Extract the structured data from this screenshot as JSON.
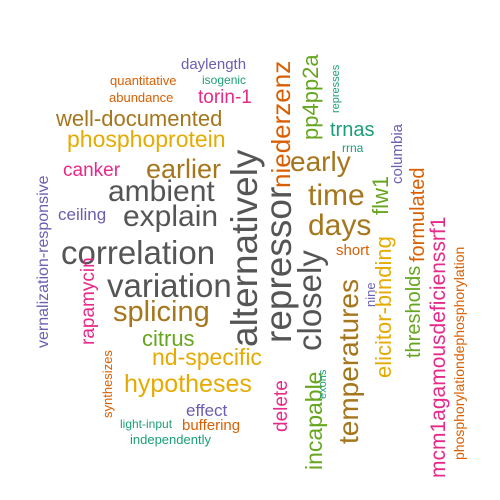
{
  "words": [
    {
      "text": "daylength",
      "color": "#6a5fb0"
    },
    {
      "text": "quantitative",
      "color": "#d95f02"
    },
    {
      "text": "isogenic",
      "color": "#1b9e77"
    },
    {
      "text": "abundance",
      "color": "#d95f02"
    },
    {
      "text": "torin-1",
      "color": "#e7298a"
    },
    {
      "text": "well-documented",
      "color": "#a6761d"
    },
    {
      "text": "phosphoprotein",
      "color": "#e6ab02"
    },
    {
      "text": "canker",
      "color": "#e7298a"
    },
    {
      "text": "earlier",
      "color": "#a6761d"
    },
    {
      "text": "ambient",
      "color": "#555555"
    },
    {
      "text": "explain",
      "color": "#555555"
    },
    {
      "text": "ceiling",
      "color": "#6a5fb0"
    },
    {
      "text": "correlation",
      "color": "#555555"
    },
    {
      "text": "variation",
      "color": "#555555"
    },
    {
      "text": "splicing",
      "color": "#a6761d"
    },
    {
      "text": "citrus",
      "color": "#66a61e"
    },
    {
      "text": "nd-specific",
      "color": "#e6ab02"
    },
    {
      "text": "hypotheses",
      "color": "#e6ab02"
    },
    {
      "text": "effect",
      "color": "#6a5fb0"
    },
    {
      "text": "light-input",
      "color": "#1b9e77"
    },
    {
      "text": "buffering",
      "color": "#d95f02"
    },
    {
      "text": "independently",
      "color": "#1b9e77"
    },
    {
      "text": "early",
      "color": "#a6761d"
    },
    {
      "text": "time",
      "color": "#a6761d"
    },
    {
      "text": "trnas",
      "color": "#1b9e77"
    },
    {
      "text": "rrna",
      "color": "#1b9e77"
    },
    {
      "text": "days",
      "color": "#a6761d"
    },
    {
      "text": "short",
      "color": "#d95f02"
    },
    {
      "text": "vernalization-responsive",
      "color": "#6a5fb0"
    },
    {
      "text": "rapamycin",
      "color": "#e7298a"
    },
    {
      "text": "synthesizes",
      "color": "#d95f02"
    },
    {
      "text": "alternatively",
      "color": "#555555"
    },
    {
      "text": "repressor",
      "color": "#555555"
    },
    {
      "text": "niederzenz",
      "color": "#d95f02"
    },
    {
      "text": "closely",
      "color": "#555555"
    },
    {
      "text": "pp4pp2a",
      "color": "#66a61e"
    },
    {
      "text": "represses",
      "color": "#1b9e77"
    },
    {
      "text": "flw1",
      "color": "#66a61e"
    },
    {
      "text": "columbia",
      "color": "#6a5fb0"
    },
    {
      "text": "elicitor-binding",
      "color": "#e6ab02"
    },
    {
      "text": "temperatures",
      "color": "#a6761d"
    },
    {
      "text": "nine",
      "color": "#6a5fb0"
    },
    {
      "text": "thresholds",
      "color": "#66a61e"
    },
    {
      "text": "formulated",
      "color": "#d95f02"
    },
    {
      "text": "mcm1agamousdeficienssrf1",
      "color": "#e7298a"
    },
    {
      "text": "phosphorylationdephosphorylation",
      "color": "#d95f02"
    },
    {
      "text": "incapable",
      "color": "#66a61e"
    },
    {
      "text": "exons",
      "color": "#1b9e77"
    },
    {
      "text": "delete",
      "color": "#e7298a"
    }
  ]
}
